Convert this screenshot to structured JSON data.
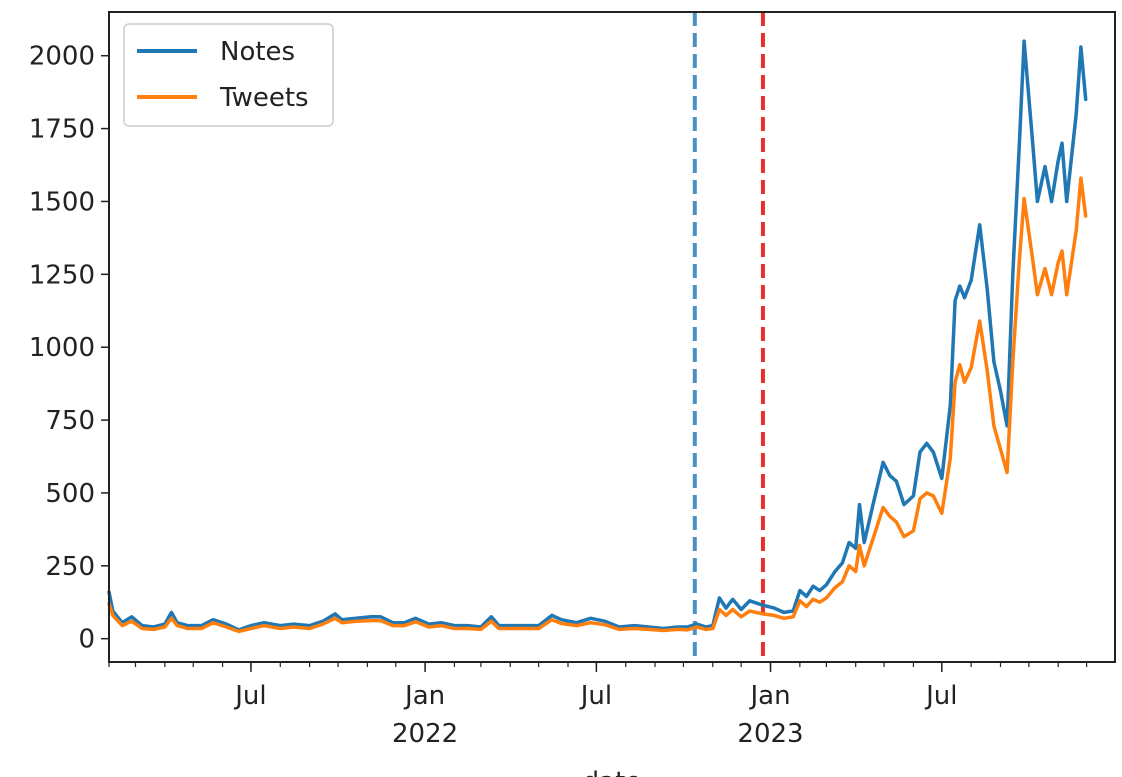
{
  "chart_data": {
    "type": "line",
    "title": "",
    "xlabel": "date",
    "ylabel": "",
    "x_axis_type": "date",
    "xlim": [
      "2021-02-01",
      "2023-12-31"
    ],
    "ylim": [
      -80,
      2150
    ],
    "grid": false,
    "legend_position": "top-left",
    "y_ticks": [
      0,
      250,
      500,
      750,
      1000,
      1250,
      1500,
      1750,
      2000
    ],
    "x_major_ticks": [
      {
        "date": "2021-07-01",
        "label": "Jul",
        "sublabel": ""
      },
      {
        "date": "2022-01-01",
        "label": "Jan",
        "sublabel": "2022"
      },
      {
        "date": "2022-07-01",
        "label": "Jul",
        "sublabel": ""
      },
      {
        "date": "2023-01-01",
        "label": "Jan",
        "sublabel": "2023"
      },
      {
        "date": "2023-07-01",
        "label": "Jul",
        "sublabel": ""
      }
    ],
    "vertical_lines": [
      {
        "date": "2022-10-13",
        "color": "#4a90c8",
        "style": "dashed"
      },
      {
        "date": "2022-12-24",
        "color": "#e8302e",
        "style": "dashed"
      }
    ],
    "series": [
      {
        "name": "Notes",
        "color": "#1f77b4",
        "points": [
          [
            "2021-02-01",
            160
          ],
          [
            "2021-02-05",
            95
          ],
          [
            "2021-02-15",
            55
          ],
          [
            "2021-02-25",
            75
          ],
          [
            "2021-03-08",
            45
          ],
          [
            "2021-03-20",
            40
          ],
          [
            "2021-04-01",
            50
          ],
          [
            "2021-04-08",
            90
          ],
          [
            "2021-04-14",
            55
          ],
          [
            "2021-04-25",
            45
          ],
          [
            "2021-05-10",
            45
          ],
          [
            "2021-05-22",
            65
          ],
          [
            "2021-06-05",
            50
          ],
          [
            "2021-06-18",
            30
          ],
          [
            "2021-07-01",
            45
          ],
          [
            "2021-07-15",
            55
          ],
          [
            "2021-08-01",
            45
          ],
          [
            "2021-08-15",
            50
          ],
          [
            "2021-09-01",
            45
          ],
          [
            "2021-09-15",
            60
          ],
          [
            "2021-09-28",
            85
          ],
          [
            "2021-10-05",
            65
          ],
          [
            "2021-10-20",
            70
          ],
          [
            "2021-11-05",
            75
          ],
          [
            "2021-11-15",
            75
          ],
          [
            "2021-11-28",
            55
          ],
          [
            "2021-12-10",
            55
          ],
          [
            "2021-12-22",
            70
          ],
          [
            "2022-01-05",
            50
          ],
          [
            "2022-01-18",
            55
          ],
          [
            "2022-02-01",
            45
          ],
          [
            "2022-02-15",
            45
          ],
          [
            "2022-03-01",
            40
          ],
          [
            "2022-03-12",
            75
          ],
          [
            "2022-03-20",
            45
          ],
          [
            "2022-04-01",
            45
          ],
          [
            "2022-04-15",
            45
          ],
          [
            "2022-05-01",
            45
          ],
          [
            "2022-05-15",
            80
          ],
          [
            "2022-05-25",
            65
          ],
          [
            "2022-06-10",
            55
          ],
          [
            "2022-06-25",
            70
          ],
          [
            "2022-07-10",
            60
          ],
          [
            "2022-07-25",
            40
          ],
          [
            "2022-08-10",
            45
          ],
          [
            "2022-08-25",
            40
          ],
          [
            "2022-09-10",
            35
          ],
          [
            "2022-09-25",
            40
          ],
          [
            "2022-10-05",
            40
          ],
          [
            "2022-10-15",
            50
          ],
          [
            "2022-10-25",
            40
          ],
          [
            "2022-11-01",
            45
          ],
          [
            "2022-11-08",
            140
          ],
          [
            "2022-11-15",
            105
          ],
          [
            "2022-11-22",
            135
          ],
          [
            "2022-12-01",
            100
          ],
          [
            "2022-12-10",
            130
          ],
          [
            "2022-12-24",
            115
          ],
          [
            "2023-01-05",
            105
          ],
          [
            "2023-01-15",
            90
          ],
          [
            "2023-01-25",
            95
          ],
          [
            "2023-02-01",
            165
          ],
          [
            "2023-02-08",
            145
          ],
          [
            "2023-02-15",
            180
          ],
          [
            "2023-02-22",
            165
          ],
          [
            "2023-03-01",
            185
          ],
          [
            "2023-03-10",
            230
          ],
          [
            "2023-03-18",
            260
          ],
          [
            "2023-03-25",
            330
          ],
          [
            "2023-04-01",
            310
          ],
          [
            "2023-04-05",
            460
          ],
          [
            "2023-04-10",
            330
          ],
          [
            "2023-04-20",
            470
          ],
          [
            "2023-04-30",
            605
          ],
          [
            "2023-05-07",
            560
          ],
          [
            "2023-05-14",
            540
          ],
          [
            "2023-05-22",
            460
          ],
          [
            "2023-06-01",
            490
          ],
          [
            "2023-06-08",
            640
          ],
          [
            "2023-06-15",
            670
          ],
          [
            "2023-06-22",
            640
          ],
          [
            "2023-07-01",
            550
          ],
          [
            "2023-07-10",
            800
          ],
          [
            "2023-07-15",
            1160
          ],
          [
            "2023-07-20",
            1210
          ],
          [
            "2023-07-25",
            1170
          ],
          [
            "2023-08-01",
            1230
          ],
          [
            "2023-08-10",
            1420
          ],
          [
            "2023-08-18",
            1200
          ],
          [
            "2023-08-25",
            950
          ],
          [
            "2023-09-01",
            850
          ],
          [
            "2023-09-08",
            730
          ],
          [
            "2023-09-14",
            1250
          ],
          [
            "2023-09-21",
            1700
          ],
          [
            "2023-09-26",
            2050
          ],
          [
            "2023-10-05",
            1700
          ],
          [
            "2023-10-10",
            1500
          ],
          [
            "2023-10-18",
            1620
          ],
          [
            "2023-10-25",
            1500
          ],
          [
            "2023-11-01",
            1640
          ],
          [
            "2023-11-05",
            1700
          ],
          [
            "2023-11-10",
            1500
          ],
          [
            "2023-11-20",
            1800
          ],
          [
            "2023-11-25",
            2030
          ],
          [
            "2023-11-30",
            1850
          ]
        ]
      },
      {
        "name": "Tweets",
        "color": "#ff7f0e",
        "points": [
          [
            "2021-02-01",
            120
          ],
          [
            "2021-02-05",
            80
          ],
          [
            "2021-02-15",
            45
          ],
          [
            "2021-02-25",
            60
          ],
          [
            "2021-03-08",
            35
          ],
          [
            "2021-03-20",
            32
          ],
          [
            "2021-04-01",
            40
          ],
          [
            "2021-04-08",
            70
          ],
          [
            "2021-04-14",
            45
          ],
          [
            "2021-04-25",
            35
          ],
          [
            "2021-05-10",
            35
          ],
          [
            "2021-05-22",
            55
          ],
          [
            "2021-06-05",
            40
          ],
          [
            "2021-06-18",
            25
          ],
          [
            "2021-07-01",
            35
          ],
          [
            "2021-07-15",
            45
          ],
          [
            "2021-08-01",
            35
          ],
          [
            "2021-08-15",
            40
          ],
          [
            "2021-09-01",
            35
          ],
          [
            "2021-09-15",
            50
          ],
          [
            "2021-09-28",
            70
          ],
          [
            "2021-10-05",
            55
          ],
          [
            "2021-10-20",
            60
          ],
          [
            "2021-11-05",
            62
          ],
          [
            "2021-11-15",
            62
          ],
          [
            "2021-11-28",
            45
          ],
          [
            "2021-12-10",
            45
          ],
          [
            "2021-12-22",
            58
          ],
          [
            "2022-01-05",
            40
          ],
          [
            "2022-01-18",
            45
          ],
          [
            "2022-02-01",
            35
          ],
          [
            "2022-02-15",
            35
          ],
          [
            "2022-03-01",
            32
          ],
          [
            "2022-03-12",
            60
          ],
          [
            "2022-03-20",
            35
          ],
          [
            "2022-04-01",
            35
          ],
          [
            "2022-04-15",
            35
          ],
          [
            "2022-05-01",
            35
          ],
          [
            "2022-05-15",
            65
          ],
          [
            "2022-05-25",
            52
          ],
          [
            "2022-06-10",
            45
          ],
          [
            "2022-06-25",
            55
          ],
          [
            "2022-07-10",
            48
          ],
          [
            "2022-07-25",
            32
          ],
          [
            "2022-08-10",
            35
          ],
          [
            "2022-08-25",
            32
          ],
          [
            "2022-09-10",
            28
          ],
          [
            "2022-09-25",
            32
          ],
          [
            "2022-10-05",
            30
          ],
          [
            "2022-10-15",
            40
          ],
          [
            "2022-10-25",
            32
          ],
          [
            "2022-11-01",
            35
          ],
          [
            "2022-11-08",
            100
          ],
          [
            "2022-11-15",
            80
          ],
          [
            "2022-11-22",
            100
          ],
          [
            "2022-12-01",
            75
          ],
          [
            "2022-12-10",
            95
          ],
          [
            "2022-12-24",
            85
          ],
          [
            "2023-01-05",
            80
          ],
          [
            "2023-01-15",
            70
          ],
          [
            "2023-01-25",
            75
          ],
          [
            "2023-02-01",
            130
          ],
          [
            "2023-02-08",
            110
          ],
          [
            "2023-02-15",
            135
          ],
          [
            "2023-02-22",
            125
          ],
          [
            "2023-03-01",
            140
          ],
          [
            "2023-03-10",
            175
          ],
          [
            "2023-03-18",
            195
          ],
          [
            "2023-03-25",
            250
          ],
          [
            "2023-04-01",
            230
          ],
          [
            "2023-04-05",
            320
          ],
          [
            "2023-04-10",
            250
          ],
          [
            "2023-04-20",
            350
          ],
          [
            "2023-04-30",
            450
          ],
          [
            "2023-05-07",
            420
          ],
          [
            "2023-05-14",
            400
          ],
          [
            "2023-05-22",
            350
          ],
          [
            "2023-06-01",
            370
          ],
          [
            "2023-06-08",
            480
          ],
          [
            "2023-06-15",
            500
          ],
          [
            "2023-06-22",
            490
          ],
          [
            "2023-07-01",
            430
          ],
          [
            "2023-07-10",
            620
          ],
          [
            "2023-07-15",
            880
          ],
          [
            "2023-07-20",
            940
          ],
          [
            "2023-07-25",
            880
          ],
          [
            "2023-08-01",
            930
          ],
          [
            "2023-08-10",
            1090
          ],
          [
            "2023-08-18",
            920
          ],
          [
            "2023-08-25",
            730
          ],
          [
            "2023-09-01",
            650
          ],
          [
            "2023-09-08",
            570
          ],
          [
            "2023-09-14",
            950
          ],
          [
            "2023-09-21",
            1300
          ],
          [
            "2023-09-26",
            1510
          ],
          [
            "2023-10-05",
            1300
          ],
          [
            "2023-10-10",
            1180
          ],
          [
            "2023-10-18",
            1270
          ],
          [
            "2023-10-25",
            1180
          ],
          [
            "2023-11-01",
            1290
          ],
          [
            "2023-11-05",
            1330
          ],
          [
            "2023-11-10",
            1180
          ],
          [
            "2023-11-20",
            1400
          ],
          [
            "2023-11-25",
            1580
          ],
          [
            "2023-11-30",
            1450
          ]
        ]
      }
    ]
  }
}
